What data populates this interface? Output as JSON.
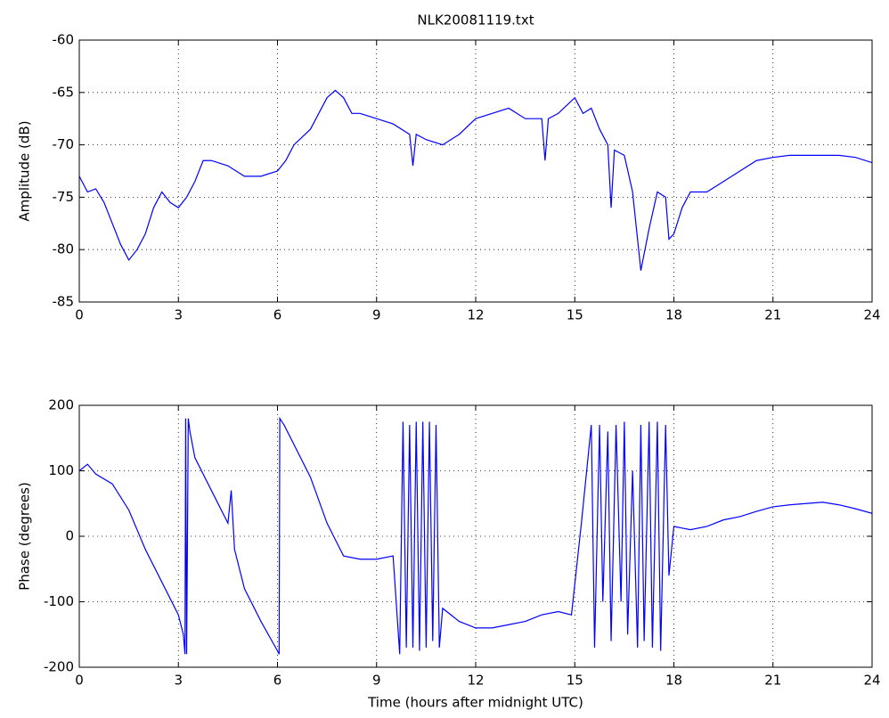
{
  "chart_data": [
    {
      "type": "line",
      "title": "NLK20081119.txt",
      "y_label": "Amplitude (dB)",
      "color": "#0000ff",
      "grid": true,
      "x": [
        0,
        0.25,
        0.5,
        0.75,
        1.0,
        1.25,
        1.5,
        1.75,
        2.0,
        2.25,
        2.5,
        2.75,
        3.0,
        3.25,
        3.5,
        3.75,
        4.0,
        4.5,
        5.0,
        5.5,
        6.0,
        6.25,
        6.5,
        7.0,
        7.25,
        7.5,
        7.75,
        8.0,
        8.25,
        8.5,
        9.0,
        9.5,
        10.0,
        10.1,
        10.2,
        10.5,
        11.0,
        11.5,
        12.0,
        12.5,
        13.0,
        13.5,
        14.0,
        14.1,
        14.2,
        14.5,
        15.0,
        15.25,
        15.5,
        15.75,
        16.0,
        16.1,
        16.2,
        16.5,
        16.75,
        17.0,
        17.25,
        17.5,
        17.75,
        17.85,
        18.0,
        18.25,
        18.5,
        19.0,
        19.5,
        20.0,
        20.5,
        21.0,
        21.5,
        22.0,
        22.5,
        23.0,
        23.5,
        24.0
      ],
      "values": [
        -73,
        -74.5,
        -74.2,
        -75.5,
        -77.5,
        -79.5,
        -81,
        -80,
        -78.5,
        -76,
        -74.5,
        -75.5,
        -76,
        -75,
        -73.5,
        -71.5,
        -71.5,
        -72,
        -73,
        -73,
        -72.5,
        -71.5,
        -70,
        -68.5,
        -67,
        -65.5,
        -64.8,
        -65.5,
        -67,
        -67,
        -67.5,
        -68,
        -69,
        -72,
        -69,
        -69.5,
        -70,
        -69,
        -67.5,
        -67,
        -66.5,
        -67.5,
        -67.5,
        -71.5,
        -67.5,
        -67,
        -65.5,
        -67,
        -66.5,
        -68.5,
        -70,
        -76,
        -70.5,
        -71,
        -74.5,
        -82,
        -78,
        -74.5,
        -75,
        -79,
        -78.5,
        -76,
        -74.5,
        -74.5,
        -73.5,
        -72.5,
        -71.5,
        -71.2,
        -71,
        -71,
        -71,
        -71,
        -71.2,
        -71.7
      ],
      "xlim": [
        0,
        24
      ],
      "xticks": [
        0,
        3,
        6,
        9,
        12,
        15,
        18,
        21,
        24
      ],
      "ylim": [
        -85,
        -60
      ],
      "yticks": [
        -85,
        -80,
        -75,
        -70,
        -65,
        -60
      ]
    },
    {
      "type": "line",
      "y_label": "Phase (degrees)",
      "x_label": "Time (hours after midnight UTC)",
      "color": "#0000ff",
      "grid": true,
      "x": [
        0,
        0.25,
        0.5,
        1.0,
        1.5,
        2.0,
        2.5,
        3.0,
        3.15,
        3.2,
        3.22,
        3.25,
        3.3,
        3.35,
        3.5,
        4.0,
        4.5,
        4.6,
        4.7,
        5.0,
        5.5,
        6.0,
        6.05,
        6.07,
        6.2,
        7.0,
        7.5,
        8.0,
        8.5,
        9.0,
        9.5,
        9.7,
        9.8,
        9.9,
        10.0,
        10.1,
        10.2,
        10.3,
        10.4,
        10.5,
        10.6,
        10.7,
        10.8,
        10.9,
        11.0,
        11.5,
        12.0,
        12.5,
        13.0,
        13.5,
        14.0,
        14.5,
        14.9,
        15.2,
        15.5,
        15.6,
        15.75,
        15.85,
        16.0,
        16.1,
        16.25,
        16.4,
        16.5,
        16.6,
        16.75,
        16.9,
        17.0,
        17.1,
        17.25,
        17.35,
        17.5,
        17.6,
        17.75,
        17.85,
        18.0,
        18.5,
        19.0,
        19.5,
        20.0,
        20.5,
        21.0,
        21.5,
        22.0,
        22.5,
        23.0,
        23.5,
        24.0
      ],
      "values": [
        100,
        110,
        95,
        80,
        40,
        -20,
        -70,
        -120,
        -150,
        -180,
        180,
        -180,
        180,
        160,
        120,
        70,
        20,
        70,
        -20,
        -80,
        -130,
        -175,
        -180,
        180,
        170,
        90,
        20,
        -30,
        -35,
        -35,
        -30,
        -180,
        175,
        -170,
        170,
        -170,
        175,
        -175,
        175,
        -170,
        175,
        -160,
        170,
        -170,
        -110,
        -130,
        -140,
        -140,
        -135,
        -130,
        -120,
        -115,
        -120,
        20,
        170,
        -170,
        170,
        -100,
        160,
        -160,
        170,
        -100,
        175,
        -150,
        100,
        -170,
        170,
        -160,
        175,
        -170,
        175,
        -175,
        170,
        -60,
        15,
        10,
        15,
        25,
        30,
        38,
        45,
        48,
        50,
        52,
        48,
        42,
        35
      ],
      "xlim": [
        0,
        24
      ],
      "xticks": [
        0,
        3,
        6,
        9,
        12,
        15,
        18,
        21,
        24
      ],
      "ylim": [
        -200,
        200
      ],
      "yticks": [
        -200,
        -100,
        0,
        100,
        200
      ]
    }
  ]
}
